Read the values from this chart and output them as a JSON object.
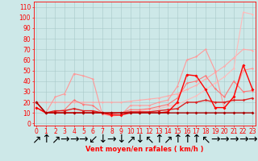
{
  "xlabel": "Vent moyen/en rafales ( km/h )",
  "bg_color": "#cde8e8",
  "grid_color": "#a8c8c8",
  "x_ticks": [
    0,
    1,
    2,
    3,
    4,
    5,
    6,
    7,
    8,
    9,
    10,
    11,
    12,
    13,
    14,
    15,
    16,
    17,
    18,
    19,
    20,
    21,
    22,
    23
  ],
  "y_ticks": [
    0,
    10,
    20,
    30,
    40,
    50,
    60,
    70,
    80,
    90,
    100,
    110
  ],
  "ylim": [
    -2,
    115
  ],
  "xlim": [
    -0.3,
    23.3
  ],
  "series": [
    {
      "color": "#ffaaaa",
      "lw": 0.8,
      "marker": "D",
      "ms": 1.5,
      "x": [
        0,
        1,
        2,
        3,
        4,
        5,
        6,
        7,
        8,
        9,
        10,
        11,
        12,
        13,
        14,
        15,
        16,
        17,
        18,
        19,
        20,
        21,
        22,
        23
      ],
      "y": [
        20,
        20,
        20,
        20,
        20,
        20,
        20,
        20,
        20,
        20,
        21,
        22,
        23,
        24,
        26,
        28,
        32,
        36,
        42,
        48,
        54,
        62,
        70,
        69
      ]
    },
    {
      "color": "#ffbbbb",
      "lw": 0.8,
      "marker": "D",
      "ms": 1.5,
      "x": [
        0,
        1,
        2,
        3,
        4,
        5,
        6,
        7,
        8,
        9,
        10,
        11,
        12,
        13,
        14,
        15,
        16,
        17,
        18,
        19,
        20,
        21,
        22,
        23
      ],
      "y": [
        15,
        10,
        10,
        10,
        10,
        10,
        10,
        10,
        10,
        10,
        11,
        12,
        13,
        14,
        16,
        18,
        22,
        26,
        32,
        38,
        44,
        52,
        105,
        103
      ]
    },
    {
      "color": "#ff9999",
      "lw": 0.8,
      "marker": "D",
      "ms": 1.5,
      "x": [
        0,
        1,
        2,
        3,
        4,
        5,
        6,
        7,
        8,
        9,
        10,
        11,
        12,
        13,
        14,
        15,
        16,
        17,
        18,
        19,
        20,
        21,
        22,
        23
      ],
      "y": [
        20,
        10,
        25,
        28,
        47,
        45,
        42,
        9,
        7,
        8,
        17,
        17,
        17,
        20,
        22,
        35,
        60,
        63,
        70,
        50,
        14,
        26,
        50,
        52
      ]
    },
    {
      "color": "#ff7777",
      "lw": 0.8,
      "marker": "D",
      "ms": 1.5,
      "x": [
        0,
        1,
        2,
        3,
        4,
        5,
        6,
        7,
        8,
        9,
        10,
        11,
        12,
        13,
        14,
        15,
        16,
        17,
        18,
        19,
        20,
        21,
        22,
        23
      ],
      "y": [
        15,
        10,
        11,
        13,
        22,
        18,
        17,
        10,
        9,
        10,
        13,
        13,
        14,
        16,
        18,
        24,
        38,
        40,
        45,
        33,
        25,
        40,
        30,
        31
      ]
    },
    {
      "color": "#dd2222",
      "lw": 1.0,
      "marker": "D",
      "ms": 1.8,
      "x": [
        0,
        1,
        2,
        3,
        4,
        5,
        6,
        7,
        8,
        9,
        10,
        11,
        12,
        13,
        14,
        15,
        16,
        17,
        18,
        19,
        20,
        21,
        22,
        23
      ],
      "y": [
        20,
        10,
        12,
        12,
        14,
        12,
        12,
        10,
        10,
        10,
        11,
        11,
        11,
        12,
        13,
        14,
        20,
        20,
        22,
        20,
        20,
        22,
        22,
        24
      ]
    },
    {
      "color": "#ff0000",
      "lw": 1.0,
      "marker": "D",
      "ms": 2.0,
      "x": [
        0,
        1,
        2,
        3,
        4,
        5,
        6,
        7,
        8,
        9,
        10,
        11,
        12,
        13,
        14,
        15,
        16,
        17,
        18,
        19,
        20,
        21,
        22,
        23
      ],
      "y": [
        15,
        10,
        10,
        10,
        10,
        10,
        10,
        10,
        8,
        8,
        10,
        10,
        10,
        10,
        11,
        20,
        46,
        45,
        32,
        15,
        15,
        25,
        55,
        32
      ]
    },
    {
      "color": "#aa0000",
      "lw": 1.0,
      "marker": "D",
      "ms": 2.0,
      "x": [
        0,
        1,
        2,
        3,
        4,
        5,
        6,
        7,
        8,
        9,
        10,
        11,
        12,
        13,
        14,
        15,
        16,
        17,
        18,
        19,
        20,
        21,
        22,
        23
      ],
      "y": [
        20,
        10,
        10,
        10,
        10,
        10,
        10,
        10,
        10,
        10,
        10,
        10,
        10,
        10,
        10,
        10,
        10,
        10,
        10,
        10,
        10,
        10,
        10,
        10
      ]
    }
  ],
  "wind_arrows": [
    "↗",
    "↑",
    "↗",
    "→",
    "→",
    "→",
    "↙",
    "↓",
    "→",
    "↓",
    "↗",
    "↓",
    "↖",
    "↑",
    "↗",
    "↑",
    "↑",
    "↑",
    "↖",
    "→",
    "→",
    "→",
    "→",
    "→"
  ],
  "axis_color": "#ff0000",
  "tick_color": "#ff0000",
  "label_color": "#ff0000",
  "font_size": 5.5
}
